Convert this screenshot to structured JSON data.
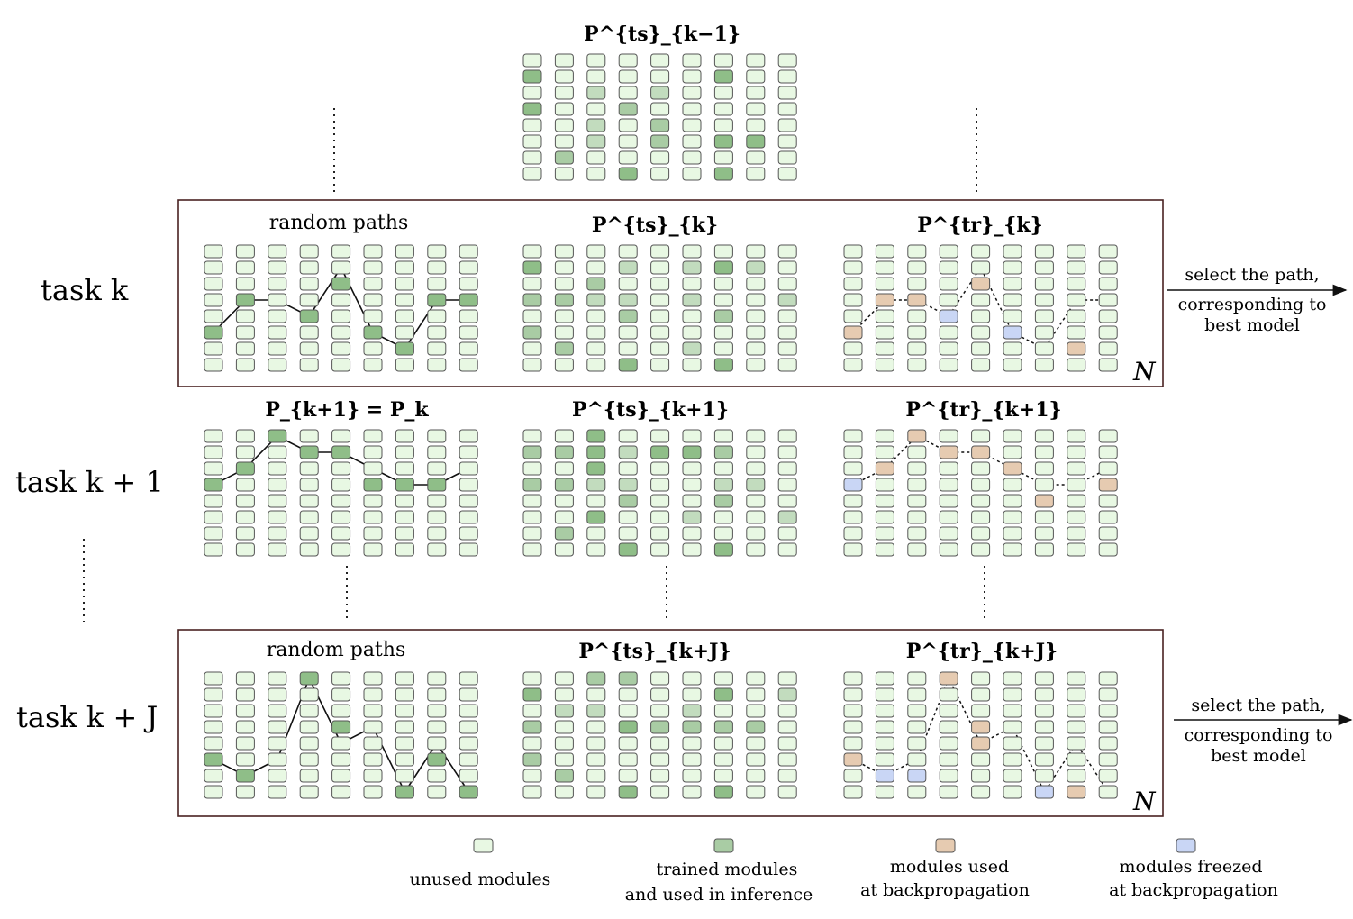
{
  "colors": {
    "unused": "#e8f8e3",
    "trained_light": "#c2dcbe",
    "trained_mid": "#a9cca4",
    "trained_dark": "#8fbe88",
    "backprop": "#e6cbb1",
    "frozen": "#c9d6f5",
    "border": "#555555",
    "frame": "#4a2222"
  },
  "labels": {
    "task_k": "task k",
    "task_k1": "task k + 1",
    "task_kJ": "task k + J",
    "random_paths": "random paths",
    "select_text": [
      "select the path,",
      "corresponding to",
      "best model"
    ],
    "N": "N"
  },
  "math": {
    "P_ts_km1": "P^{ts}_{k−1}",
    "P_ts_k": "P^{ts}_{k}",
    "P_tr_k": "P^{tr}_{k}",
    "P_k1_eq": "P_{k+1} = P_k",
    "P_ts_k1": "P^{ts}_{k+1}",
    "P_tr_k1": "P^{tr}_{k+1}",
    "P_ts_kJ": "P^{ts}_{k+J}",
    "P_tr_kJ": "P^{tr}_{k+J}"
  },
  "legend": [
    {
      "key": "unused",
      "lines": [
        "unused modules"
      ]
    },
    {
      "key": "trained",
      "lines": [
        "trained modules",
        "and used in inference"
      ]
    },
    {
      "key": "backprop",
      "lines": [
        "modules used",
        "at backpropagation"
      ]
    },
    {
      "key": "frozen",
      "lines": [
        "modules freezed",
        "at backpropagation"
      ]
    }
  ],
  "grids": {
    "note": "rows listed top to bottom, 9 columns, 8 rows; codes: 0 unused, 1 trained-light, 2 trained-mid, 3 trained-dark, b backprop, f frozen",
    "top_ts": [
      "000000000",
      "300000300",
      "001010000",
      "300200000",
      "001020000",
      "001020330",
      "020000000",
      "000300300"
    ],
    "k_rand": [
      "000000000",
      "000000000",
      "000030000",
      "030000033",
      "000300000",
      "300003000",
      "000000300",
      "000000000"
    ],
    "k_ts": [
      "000000000",
      "300101310",
      "002000000",
      "221101001",
      "000200200",
      "200000000",
      "020001000",
      "000300300"
    ],
    "k_tr": [
      "000000000",
      "000000000",
      "0000b0000",
      "0bb000000",
      "000f00000",
      "b0000f000",
      "0000000b0",
      "000000000"
    ],
    "k1_rand": [
      "003000000",
      "000330000",
      "030000000",
      "300003330",
      "000000000",
      "000000000",
      "000000000",
      "000000000"
    ],
    "k1_ts": [
      "003000000",
      "223133200",
      "003000000",
      "221100110",
      "000200200",
      "003001001",
      "020000000",
      "000300300"
    ],
    "k1_tr": [
      "00b000000",
      "000bb0000",
      "0b000b000",
      "f0000000b",
      "000000b00",
      "000000000",
      "000000000",
      "000000000"
    ],
    "kJ_rand": [
      "000300000",
      "000000000",
      "000000000",
      "000030000",
      "000000000",
      "300000030",
      "030000000",
      "000000303"
    ],
    "kJ_ts": [
      "002200000",
      "300000301",
      "011001000",
      "200322220",
      "000000000",
      "200000000",
      "020000000",
      "000300300"
    ],
    "kJ_tr": [
      "000b00000",
      "000000000",
      "000000000",
      "0000b0000",
      "0000b0000",
      "b00000000",
      "0ff000000",
      "000000fb0"
    ]
  },
  "paths": {
    "k_rand": [
      5,
      3,
      3,
      4,
      1,
      5,
      6,
      3,
      3
    ],
    "k_tr": [
      5,
      3,
      3,
      4,
      1,
      5,
      6,
      3,
      3
    ],
    "k1_rand": [
      3,
      2,
      0,
      1,
      1,
      2,
      3,
      3,
      2
    ],
    "k1_tr": [
      3,
      2,
      0,
      1,
      1,
      2,
      3,
      3,
      2
    ],
    "kJ_rand": [
      5,
      6,
      5,
      0,
      4,
      3,
      7,
      4,
      7
    ],
    "kJ_tr": [
      5,
      6,
      5,
      0,
      4,
      3,
      7,
      4,
      7
    ]
  }
}
